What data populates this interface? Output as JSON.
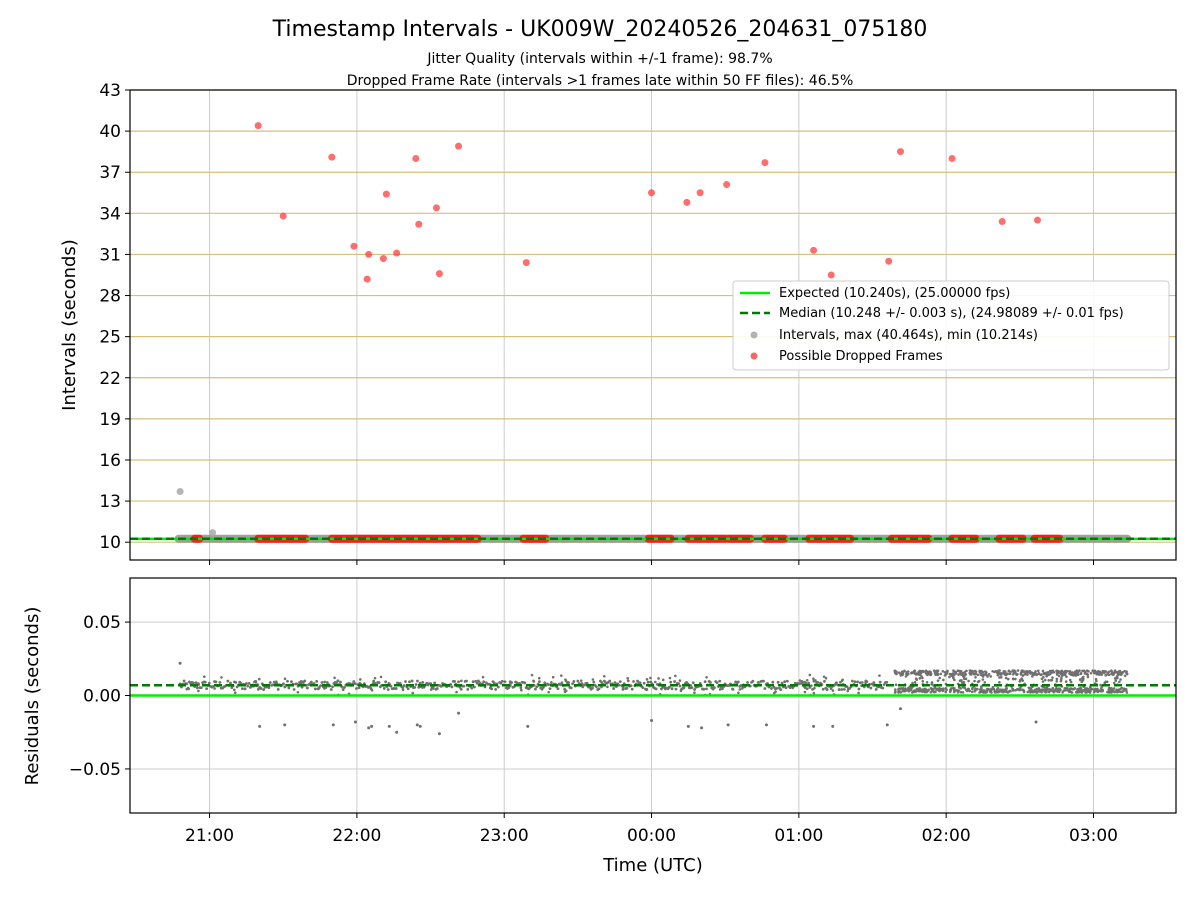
{
  "chart_data": [
    {
      "type": "scatter",
      "title": "Timestamp Intervals - UK009W_20240526_204631_075180",
      "subtitle_lines": [
        "Jitter Quality (intervals within +/-1 frame): 98.7%",
        "Dropped Frame Rate (intervals >1 frames late within 50 FF files): 46.5%"
      ],
      "xlabel": "",
      "ylabel": "Intervals (seconds)",
      "x_unit": "hours since 20:00 UTC on the date shown in the title's run (times wrap past midnight)",
      "xlim": [
        0.46,
        7.56
      ],
      "ylim": [
        8.7,
        43
      ],
      "yticks": [
        10,
        13,
        16,
        19,
        22,
        25,
        28,
        31,
        34,
        37,
        40,
        43
      ],
      "grid": true,
      "legend_position": "center-right",
      "legend": [
        "Expected (10.240s), (25.00000 fps)",
        "Median (10.248 +/- 0.003 s), (24.98089 +/- 0.01 fps)",
        "Intervals, max (40.464s), min (10.214s)",
        "Possible Dropped Frames"
      ],
      "expected_interval": 10.24,
      "median_interval": 10.248,
      "series": [
        {
          "name": "Intervals, max (40.464s), min (10.214s)",
          "color": "#a0a0a0",
          "points": [
            [
              0.8,
              13.7
            ],
            [
              1.02,
              10.7
            ]
          ],
          "baseline_band": {
            "x_start": 0.79,
            "x_end": 7.23,
            "y": 10.25
          }
        },
        {
          "name": "Possible Dropped Frames",
          "color": "#ff2020",
          "points": [
            [
              1.33,
              40.4
            ],
            [
              1.5,
              33.8
            ],
            [
              1.83,
              38.1
            ],
            [
              1.98,
              31.6
            ],
            [
              2.07,
              29.2
            ],
            [
              2.08,
              31.0
            ],
            [
              2.18,
              30.7
            ],
            [
              2.2,
              35.4
            ],
            [
              2.27,
              31.1
            ],
            [
              2.4,
              38.0
            ],
            [
              2.42,
              33.2
            ],
            [
              2.54,
              34.4
            ],
            [
              2.56,
              29.6
            ],
            [
              2.69,
              38.9
            ],
            [
              3.15,
              30.4
            ],
            [
              4.0,
              35.5
            ],
            [
              4.24,
              34.8
            ],
            [
              4.33,
              35.5
            ],
            [
              4.51,
              36.1
            ],
            [
              4.77,
              37.7
            ],
            [
              5.1,
              31.3
            ],
            [
              5.22,
              29.5
            ],
            [
              5.61,
              30.5
            ],
            [
              5.69,
              38.5
            ],
            [
              6.04,
              38.0
            ],
            [
              6.38,
              33.4
            ],
            [
              6.62,
              33.5
            ]
          ],
          "baseline_clusters": [
            [
              0.9,
              0.93
            ],
            [
              1.33,
              1.65
            ],
            [
              1.83,
              2.82
            ],
            [
              3.13,
              3.28
            ],
            [
              3.98,
              4.13
            ],
            [
              4.25,
              4.5
            ],
            [
              4.52,
              4.67
            ],
            [
              4.77,
              4.9
            ],
            [
              5.07,
              5.35
            ],
            [
              5.63,
              5.88
            ],
            [
              6.04,
              6.2
            ],
            [
              6.36,
              6.52
            ],
            [
              6.6,
              6.77
            ]
          ]
        }
      ]
    },
    {
      "type": "scatter",
      "title": "",
      "xlabel": "Time (UTC)",
      "ylabel": "Residuals (seconds)",
      "xlim": [
        0.46,
        7.56
      ],
      "ylim": [
        -0.08,
        0.08
      ],
      "yticks": [
        -0.05,
        0.0,
        0.05
      ],
      "ytick_labels": [
        "−0.05",
        "0.00",
        "0.05"
      ],
      "xticks": [
        1,
        2,
        3,
        4,
        5,
        6,
        7
      ],
      "xtick_labels": [
        "21:00",
        "22:00",
        "23:00",
        "00:00",
        "01:00",
        "02:00",
        "03:00"
      ],
      "grid": true,
      "expected_residual": 0.0,
      "median_residual": 0.007,
      "series": [
        {
          "name": "",
          "color": "#707070",
          "outliers": [
            [
              0.8,
              0.022
            ],
            [
              1.34,
              -0.021
            ],
            [
              1.51,
              -0.02
            ],
            [
              1.84,
              -0.02
            ],
            [
              1.99,
              -0.018
            ],
            [
              2.08,
              -0.022
            ],
            [
              2.1,
              -0.021
            ],
            [
              2.22,
              -0.021
            ],
            [
              2.27,
              -0.025
            ],
            [
              2.41,
              -0.02
            ],
            [
              2.43,
              -0.021
            ],
            [
              2.56,
              -0.026
            ],
            [
              2.69,
              -0.012
            ],
            [
              3.16,
              -0.021
            ],
            [
              4.0,
              -0.017
            ],
            [
              4.25,
              -0.021
            ],
            [
              4.34,
              -0.022
            ],
            [
              4.52,
              -0.02
            ],
            [
              4.78,
              -0.02
            ],
            [
              5.1,
              -0.021
            ],
            [
              5.23,
              -0.021
            ],
            [
              5.6,
              -0.02
            ],
            [
              5.69,
              -0.009
            ],
            [
              6.61,
              -0.018
            ]
          ],
          "dense_band": {
            "x_start": 0.8,
            "x_end": 5.6,
            "y_center": 0.007,
            "spread": 0.003
          },
          "wide_band": {
            "x_start": 5.65,
            "x_end": 7.23,
            "y_min": 0.002,
            "y_max": 0.017
          }
        }
      ]
    }
  ],
  "colors": {
    "expected": "#00ee00",
    "median": "#007a00",
    "interval_gray": "#a8a8a8",
    "dropped_red": "#ff3030",
    "hgrid_top": "#d6c07a",
    "grid": "#cccccc",
    "residual_gray": "#707070"
  }
}
